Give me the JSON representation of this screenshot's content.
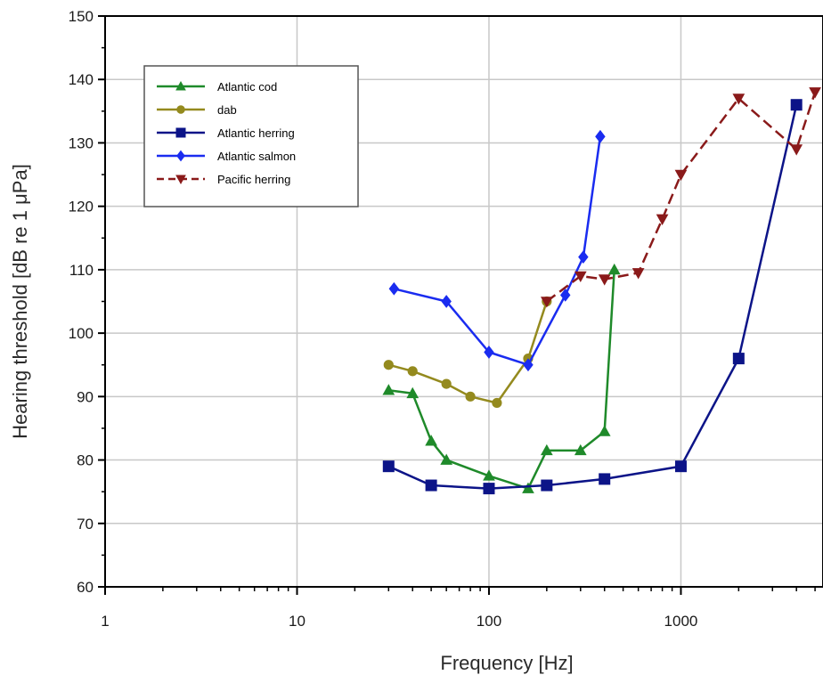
{
  "chart_data": {
    "type": "line",
    "xlabel": "Frequency [Hz]",
    "ylabel": "Hearing threshold [dB re 1  μPa]",
    "x_scale": "log",
    "xlim": [
      1,
      5500
    ],
    "ylim": [
      60,
      150
    ],
    "x_ticks": [
      1,
      10,
      100,
      1000
    ],
    "x_tick_labels": [
      "1",
      "10",
      "100",
      "1000"
    ],
    "y_ticks": [
      60,
      70,
      80,
      90,
      100,
      110,
      120,
      130,
      140,
      150
    ],
    "y_tick_labels": [
      "60",
      "70",
      "80",
      "90",
      "100",
      "110",
      "120",
      "130",
      "140",
      "150"
    ],
    "grid": true,
    "legend_position": "top-left",
    "series": [
      {
        "name": "Atlantic cod",
        "color": "#1f8a2a",
        "marker": "triangle-up",
        "dash": false,
        "x": [
          30,
          40,
          50,
          60,
          100,
          160,
          200,
          300,
          400,
          450
        ],
        "y": [
          91,
          90.5,
          83,
          80,
          77.5,
          75.5,
          81.5,
          81.5,
          84.5,
          110
        ]
      },
      {
        "name": "dab",
        "color": "#948a1e",
        "marker": "circle",
        "dash": false,
        "x": [
          30,
          40,
          60,
          80,
          110,
          160,
          200
        ],
        "y": [
          95,
          94,
          92,
          90,
          89,
          96,
          105
        ]
      },
      {
        "name": "Atlantic herring",
        "color": "#0c1488",
        "marker": "square",
        "dash": false,
        "x": [
          30,
          50,
          100,
          200,
          400,
          1000,
          2000,
          4000
        ],
        "y": [
          79,
          76,
          75.5,
          76,
          77,
          79,
          96,
          136
        ]
      },
      {
        "name": "Atlantic salmon",
        "color": "#1a2cf0",
        "marker": "diamond",
        "dash": false,
        "x": [
          32,
          60,
          100,
          160,
          250,
          310,
          380
        ],
        "y": [
          107,
          105,
          97,
          95,
          106,
          112,
          131
        ]
      },
      {
        "name": "Pacific herring",
        "color": "#8a1a1a",
        "marker": "triangle-down",
        "dash": true,
        "x": [
          200,
          300,
          400,
          600,
          800,
          1000,
          2000,
          4000,
          5000
        ],
        "y": [
          105,
          109,
          108.5,
          109.5,
          118,
          125,
          137,
          129,
          138
        ]
      }
    ]
  }
}
